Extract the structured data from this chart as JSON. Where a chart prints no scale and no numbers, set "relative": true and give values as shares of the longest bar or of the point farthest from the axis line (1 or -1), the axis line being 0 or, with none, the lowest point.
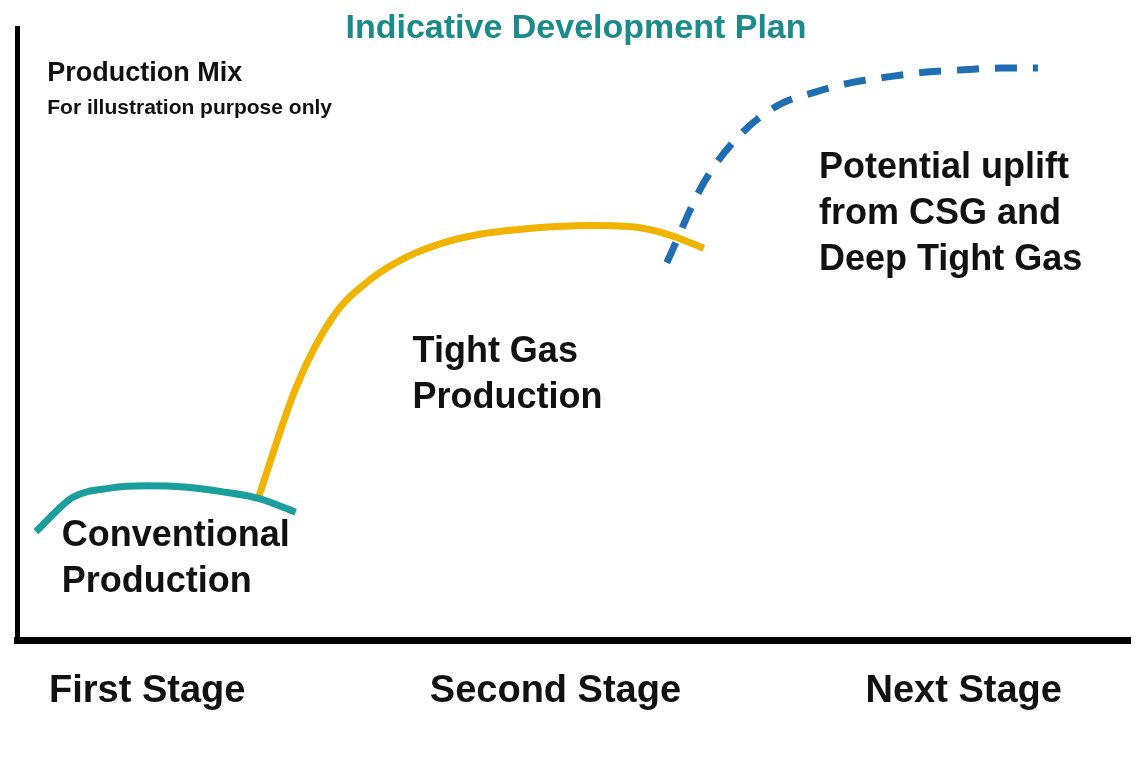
{
  "chart_data": {
    "type": "line",
    "title": "Indicative Development Plan",
    "ylabel": "Production Mix",
    "relative": true,
    "legend": false,
    "grid": false,
    "marker": "none",
    "categories": [
      null,
      null,
      null,
      "First Stage",
      null,
      null,
      null,
      null,
      null,
      null,
      null,
      null,
      null,
      null,
      "Second Stage",
      null,
      null,
      null,
      null,
      null,
      null,
      null,
      null,
      null,
      null,
      "Next Stage",
      null,
      null,
      null,
      null
    ],
    "series": [
      {
        "name": "Conventional Production",
        "color": "#1a9e9e",
        "line_style": "solid",
        "values": [
          0.19,
          0.25,
          0.266,
          0.27,
          0.268,
          0.26,
          0.248,
          0.224,
          null,
          null,
          null,
          null,
          null,
          null,
          null,
          null,
          null,
          null,
          null,
          null,
          null,
          null,
          null,
          null,
          null,
          null,
          null,
          null,
          null,
          null
        ]
      },
      {
        "name": "Tight Gas Production",
        "color": "#f0b400",
        "line_style": "solid",
        "values": [
          null,
          null,
          null,
          null,
          null,
          null,
          0.25,
          0.44,
          0.565,
          0.63,
          0.67,
          0.695,
          0.71,
          0.718,
          0.723,
          0.725,
          0.723,
          0.71,
          0.685,
          null,
          null,
          null,
          null,
          null,
          null,
          null,
          null,
          null,
          null,
          null
        ]
      },
      {
        "name": "Potential uplift from CSG and Deep Tight Gas",
        "color": "#1f6db3",
        "line_style": "dashed",
        "values": [
          null,
          null,
          null,
          null,
          null,
          null,
          null,
          null,
          null,
          null,
          null,
          null,
          null,
          null,
          null,
          null,
          null,
          0.66,
          0.8,
          0.885,
          0.935,
          0.958,
          0.975,
          0.985,
          0.993,
          0.997,
          1,
          1,
          null,
          null
        ]
      }
    ],
    "annotations": [
      "For illustration purpose only"
    ]
  }
}
